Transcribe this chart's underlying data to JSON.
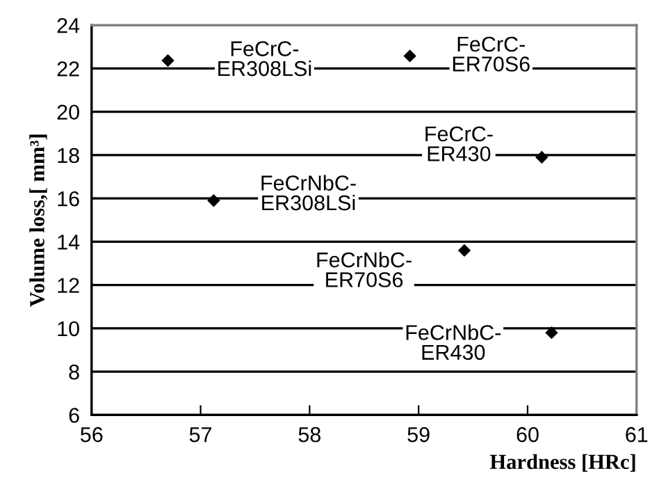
{
  "chart_data": {
    "type": "scatter",
    "xlabel": "Hardness [HRc]",
    "ylabel": "Volume loss,[ mm³]",
    "x": [
      56.7,
      58.92,
      60.13,
      57.12,
      59.42,
      60.22
    ],
    "values": [
      22.37,
      22.58,
      17.9,
      15.9,
      13.6,
      9.8
    ],
    "color": "#000000",
    "marker": "diamond",
    "xlim": [
      56,
      61
    ],
    "xticks": [
      56,
      57,
      58,
      59,
      60,
      61
    ],
    "ylim": [
      6,
      24
    ],
    "yticks": [
      6,
      8,
      10,
      12,
      14,
      16,
      18,
      20,
      22,
      24
    ],
    "grid": "y",
    "annotations": [
      {
        "text": "FeCrC-\nER308LSi",
        "x": 56.7,
        "y": 22.37
      },
      {
        "text": "FeCrC-\nER70S6",
        "x": 58.92,
        "y": 22.58
      },
      {
        "text": "FeCrC-\nER430",
        "x": 60.13,
        "y": 17.9
      },
      {
        "text": "FeCrNbC-\nER308LSi",
        "x": 57.12,
        "y": 15.9
      },
      {
        "text": "FeCrNbC-\nER70S6",
        "x": 59.42,
        "y": 13.6
      },
      {
        "text": "FeCrNbC-\nER430",
        "x": 60.22,
        "y": 9.8
      }
    ]
  }
}
